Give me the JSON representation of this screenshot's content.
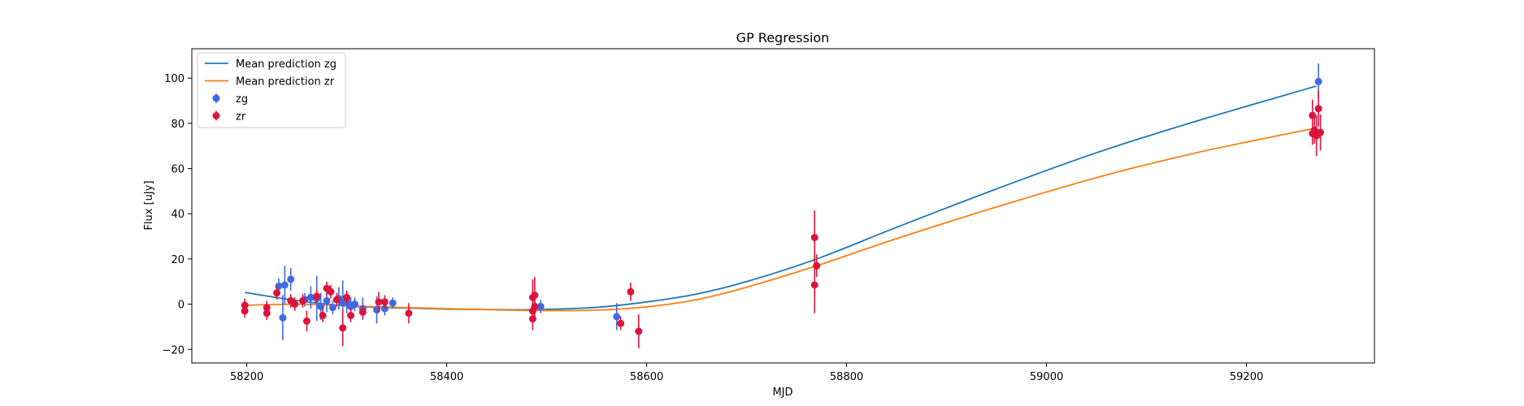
{
  "chart_data": {
    "type": "scatter",
    "title": "GP Regression",
    "xlabel": "MJD",
    "ylabel": "Flux [uJy]",
    "xlim": [
      58145,
      59328
    ],
    "ylim": [
      -26,
      113
    ],
    "xticks": [
      58200,
      58400,
      58600,
      58800,
      59000,
      59200
    ],
    "yticks": [
      -20,
      0,
      20,
      40,
      60,
      80,
      100
    ],
    "grid": false,
    "legend_position": "top-left",
    "colors": {
      "zg": "#4169e1",
      "zr": "#dc143c",
      "mean_zg": "#1f77b4",
      "mean_zr": "#ff7f0e"
    },
    "lines": [
      {
        "name": "Mean prediction zg",
        "color": "#1f77b4",
        "x": [
          58198,
          58250,
          58300,
          58350,
          58400,
          58450,
          58490,
          58550,
          58600,
          58650,
          58700,
          58770,
          58850,
          58950,
          59050,
          59150,
          59270
        ],
        "y": [
          5.2,
          1.6,
          -0.8,
          -1.6,
          -2.2,
          -2.4,
          -2.4,
          -1.4,
          1.0,
          4.5,
          10.0,
          20.0,
          34.0,
          51.0,
          67.0,
          81.0,
          96.5
        ]
      },
      {
        "name": "Mean prediction zr",
        "color": "#ff7f0e",
        "x": [
          58198,
          58250,
          58300,
          58350,
          58400,
          58450,
          58490,
          58550,
          58600,
          58650,
          58700,
          58770,
          58850,
          58950,
          59050,
          59150,
          59270
        ],
        "y": [
          -0.5,
          0.0,
          -0.7,
          -1.4,
          -2.0,
          -2.5,
          -2.8,
          -2.6,
          -1.2,
          2.0,
          7.5,
          17.0,
          29.0,
          43.0,
          56.0,
          67.0,
          78.0
        ]
      }
    ],
    "series": [
      {
        "name": "zg",
        "color": "#4169e1",
        "points": [
          {
            "x": 58232,
            "y": 8.0,
            "err": 3.5
          },
          {
            "x": 58236,
            "y": -6.0,
            "err": 10.0
          },
          {
            "x": 58238,
            "y": 8.5,
            "err": 8.5
          },
          {
            "x": 58244,
            "y": 11.0,
            "err": 5.0
          },
          {
            "x": 58258,
            "y": 2.0,
            "err": 3.0
          },
          {
            "x": 58264,
            "y": 3.0,
            "err": 5.0
          },
          {
            "x": 58270,
            "y": 2.5,
            "err": 10.0
          },
          {
            "x": 58274,
            "y": -1.0,
            "err": 6.0
          },
          {
            "x": 58280,
            "y": 1.5,
            "err": 5.0
          },
          {
            "x": 58286,
            "y": -1.5,
            "err": 3.0
          },
          {
            "x": 58292,
            "y": 2.5,
            "err": 5.0
          },
          {
            "x": 58296,
            "y": 0.5,
            "err": 10.0
          },
          {
            "x": 58300,
            "y": 1.0,
            "err": 5.0
          },
          {
            "x": 58304,
            "y": -1.0,
            "err": 4.0
          },
          {
            "x": 58308,
            "y": 0.0,
            "err": 3.0
          },
          {
            "x": 58316,
            "y": -2.0,
            "err": 5.0
          },
          {
            "x": 58330,
            "y": -2.5,
            "err": 6.0
          },
          {
            "x": 58338,
            "y": -2.0,
            "err": 3.0
          },
          {
            "x": 58346,
            "y": 0.5,
            "err": 2.5
          },
          {
            "x": 58494,
            "y": -1.0,
            "err": 3.0
          },
          {
            "x": 58570,
            "y": -5.5,
            "err": 6.0
          },
          {
            "x": 59272,
            "y": 98.5,
            "err": 8.0
          }
        ]
      },
      {
        "name": "zr",
        "color": "#dc143c",
        "points": [
          {
            "x": 58198,
            "y": -0.5,
            "err": 3.0
          },
          {
            "x": 58198,
            "y": -3.0,
            "err": 3.0
          },
          {
            "x": 58220,
            "y": -1.5,
            "err": 3.0
          },
          {
            "x": 58220,
            "y": -4.0,
            "err": 3.0
          },
          {
            "x": 58230,
            "y": 5.0,
            "err": 3.0
          },
          {
            "x": 58244,
            "y": 1.5,
            "err": 3.0
          },
          {
            "x": 58248,
            "y": 0.0,
            "err": 3.0
          },
          {
            "x": 58256,
            "y": 1.5,
            "err": 3.0
          },
          {
            "x": 58260,
            "y": -7.5,
            "err": 4.5
          },
          {
            "x": 58270,
            "y": 3.5,
            "err": 3.0
          },
          {
            "x": 58276,
            "y": -5.0,
            "err": 3.0
          },
          {
            "x": 58280,
            "y": 7.0,
            "err": 3.0
          },
          {
            "x": 58284,
            "y": 5.5,
            "err": 3.0
          },
          {
            "x": 58290,
            "y": 2.0,
            "err": 3.0
          },
          {
            "x": 58296,
            "y": -10.5,
            "err": 8.0
          },
          {
            "x": 58300,
            "y": 3.0,
            "err": 3.0
          },
          {
            "x": 58304,
            "y": -5.0,
            "err": 3.0
          },
          {
            "x": 58316,
            "y": -3.5,
            "err": 3.0
          },
          {
            "x": 58332,
            "y": 1.0,
            "err": 4.5
          },
          {
            "x": 58338,
            "y": 1.0,
            "err": 3.0
          },
          {
            "x": 58362,
            "y": -4.0,
            "err": 4.5
          },
          {
            "x": 58486,
            "y": 3.0,
            "err": 8.0
          },
          {
            "x": 58486,
            "y": -3.0,
            "err": 5.0
          },
          {
            "x": 58486,
            "y": -6.5,
            "err": 5.0
          },
          {
            "x": 58488,
            "y": 4.0,
            "err": 8.0
          },
          {
            "x": 58488,
            "y": -1.0,
            "err": 6.0
          },
          {
            "x": 58574,
            "y": -8.5,
            "err": 3.0
          },
          {
            "x": 58584,
            "y": 5.5,
            "err": 4.0
          },
          {
            "x": 58592,
            "y": -12.0,
            "err": 7.5
          },
          {
            "x": 58768,
            "y": 29.5,
            "err": 12.0
          },
          {
            "x": 58768,
            "y": 8.5,
            "err": 12.5
          },
          {
            "x": 58770,
            "y": 17.0,
            "err": 5.0
          },
          {
            "x": 59266,
            "y": 83.5,
            "err": 7.0
          },
          {
            "x": 59266,
            "y": 75.5,
            "err": 5.0
          },
          {
            "x": 59268,
            "y": 77.0,
            "err": 6.0
          },
          {
            "x": 59270,
            "y": 74.5,
            "err": 9.0
          },
          {
            "x": 59272,
            "y": 86.5,
            "err": 8.0
          },
          {
            "x": 59274,
            "y": 76.0,
            "err": 8.0
          }
        ]
      }
    ],
    "legend": [
      "Mean prediction zg",
      "Mean prediction zr",
      "zg",
      "zr"
    ]
  }
}
